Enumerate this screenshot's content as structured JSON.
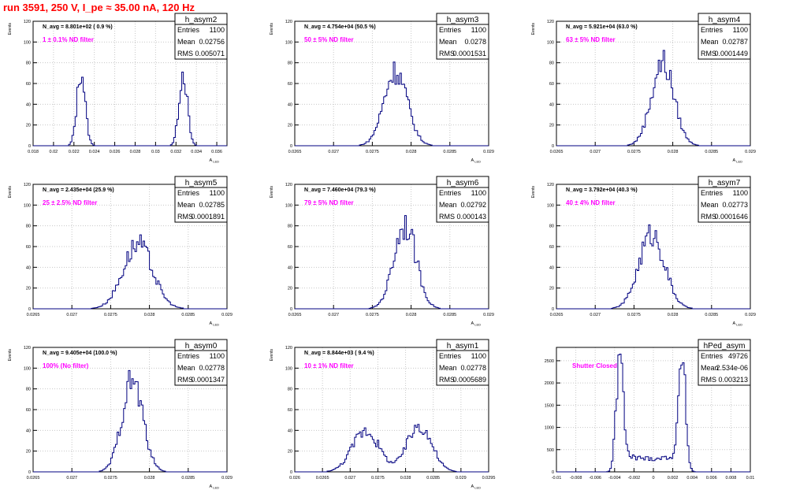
{
  "header": {
    "title": "run 3591,   250 V, I_pe ≈ 35.00 nA, 120 Hz"
  },
  "colors": {
    "title": "#ff0000",
    "filter_label": "#ff00ff",
    "histogram_line": "#000080",
    "grid": "#c8c8c8"
  },
  "chart_data": [
    {
      "type": "histogram",
      "name": "h_asym2",
      "ylabel": "Events",
      "xlabel": "A_LED",
      "xlim": [
        0.018,
        0.037
      ],
      "ylim": [
        0,
        120
      ],
      "xticks": [
        "0.018",
        "0.02",
        "0.022",
        "0.024",
        "0.026",
        "0.028",
        "0.03",
        "0.032",
        "0.034",
        "0.036"
      ],
      "xtick_values": [
        0.018,
        0.02,
        0.022,
        0.024,
        0.026,
        0.028,
        0.03,
        0.032,
        0.034,
        0.036
      ],
      "yticks": [
        0,
        20,
        40,
        60,
        80,
        100,
        120
      ],
      "navg": "N_avg = 8.801e+02 ( 0.9 %)",
      "filter": "1 ± 0.1% ND filter",
      "stats": {
        "entries": "1100",
        "mean": "0.02756",
        "rms": "0.005071"
      },
      "peaks": [
        {
          "center": 0.0227,
          "sigma": 0.0004,
          "height": 72
        },
        {
          "center": 0.0327,
          "sigma": 0.0004,
          "height": 72
        }
      ]
    },
    {
      "type": "histogram",
      "name": "h_asym3",
      "ylabel": "Events",
      "xlabel": "A_LED",
      "xlim": [
        0.0265,
        0.029
      ],
      "ylim": [
        0,
        120
      ],
      "xticks": [
        "0.0265",
        "0.027",
        "0.0275",
        "0.028",
        "0.0285",
        "0.029"
      ],
      "xtick_values": [
        0.0265,
        0.027,
        0.0275,
        0.028,
        0.0285,
        0.029
      ],
      "yticks": [
        0,
        20,
        40,
        60,
        80,
        100,
        120
      ],
      "navg": "N_avg = 4.754e+04 (50.5 %)",
      "filter": "50 ± 5% ND filter",
      "stats": {
        "entries": "1100",
        "mean": "0.0278",
        "rms": "0.0001531"
      },
      "peaks": [
        {
          "center": 0.0278,
          "sigma": 0.00015,
          "height": 72
        }
      ]
    },
    {
      "type": "histogram",
      "name": "h_asym4",
      "ylabel": "Events",
      "xlabel": "A_LED",
      "xlim": [
        0.0265,
        0.029
      ],
      "ylim": [
        0,
        120
      ],
      "xticks": [
        "0.0265",
        "0.027",
        "0.0275",
        "0.028",
        "0.0285",
        "0.029"
      ],
      "xtick_values": [
        0.0265,
        0.027,
        0.0275,
        0.028,
        0.0285,
        0.029
      ],
      "yticks": [
        0,
        20,
        40,
        60,
        80,
        100,
        120
      ],
      "navg": "N_avg = 5.921e+04 (63.0 %)",
      "filter": "63 ± 5% ND filter",
      "stats": {
        "entries": "1100",
        "mean": "0.02787",
        "rms": "0.0001449"
      },
      "peaks": [
        {
          "center": 0.02787,
          "sigma": 0.000145,
          "height": 80
        }
      ]
    },
    {
      "type": "histogram",
      "name": "h_asym5",
      "ylabel": "Events",
      "xlabel": "A_LED",
      "xlim": [
        0.0265,
        0.029
      ],
      "ylim": [
        0,
        120
      ],
      "xticks": [
        "0.0265",
        "0.027",
        "0.0275",
        "0.028",
        "0.0285",
        "0.029"
      ],
      "xtick_values": [
        0.0265,
        0.027,
        0.0275,
        0.028,
        0.0285,
        0.029
      ],
      "yticks": [
        0,
        20,
        40,
        60,
        80,
        100,
        120
      ],
      "navg": "N_avg = 2.435e+04 (25.9 %)",
      "filter": "25 ± 2.5% ND filter",
      "stats": {
        "entries": "1100",
        "mean": "0.02785",
        "rms": "0.0001891"
      },
      "peaks": [
        {
          "center": 0.02785,
          "sigma": 0.00019,
          "height": 62
        }
      ]
    },
    {
      "type": "histogram",
      "name": "h_asym6",
      "ylabel": "Events",
      "xlabel": "A_LED",
      "xlim": [
        0.0265,
        0.029
      ],
      "ylim": [
        0,
        120
      ],
      "xticks": [
        "0.0265",
        "0.027",
        "0.0275",
        "0.028",
        "0.0285",
        "0.029"
      ],
      "xtick_values": [
        0.0265,
        0.027,
        0.0275,
        0.028,
        0.0285,
        0.029
      ],
      "yticks": [
        0,
        20,
        40,
        60,
        80,
        100,
        120
      ],
      "navg": "N_avg = 7.460e+04 (79.3 %)",
      "filter": "79 ± 5% ND filter",
      "stats": {
        "entries": "1100",
        "mean": "0.02792",
        "rms": "0.000143"
      },
      "peaks": [
        {
          "center": 0.02792,
          "sigma": 0.000143,
          "height": 82
        }
      ]
    },
    {
      "type": "histogram",
      "name": "h_asym7",
      "ylabel": "Events",
      "xlabel": "A_LED",
      "xlim": [
        0.0265,
        0.029
      ],
      "ylim": [
        0,
        120
      ],
      "xticks": [
        "0.0265",
        "0.027",
        "0.0275",
        "0.028",
        "0.0285",
        "0.029"
      ],
      "xtick_values": [
        0.0265,
        0.027,
        0.0275,
        0.028,
        0.0285,
        0.029
      ],
      "yticks": [
        0,
        20,
        40,
        60,
        80,
        100,
        120
      ],
      "navg": "N_avg = 3.792e+04 (40.3 %)",
      "filter": "40 ± 4% ND filter",
      "stats": {
        "entries": "1100",
        "mean": "0.02773",
        "rms": "0.0001646"
      },
      "peaks": [
        {
          "center": 0.02773,
          "sigma": 0.000165,
          "height": 72
        }
      ]
    },
    {
      "type": "histogram",
      "name": "h_asym0",
      "ylabel": "Events",
      "xlabel": "A_LED",
      "xlim": [
        0.0265,
        0.029
      ],
      "ylim": [
        0,
        120
      ],
      "xticks": [
        "0.0265",
        "0.027",
        "0.0275",
        "0.028",
        "0.0285",
        "0.029"
      ],
      "xtick_values": [
        0.0265,
        0.027,
        0.0275,
        0.028,
        0.0285,
        0.029
      ],
      "yticks": [
        0,
        20,
        40,
        60,
        80,
        100,
        120
      ],
      "navg": "N_avg = 9.405e+04 (100.0 %)",
      "filter": "100% (No filter)",
      "stats": {
        "entries": "1100",
        "mean": "0.02778",
        "rms": "0.0001347"
      },
      "peaks": [
        {
          "center": 0.02778,
          "sigma": 0.000135,
          "height": 88
        }
      ]
    },
    {
      "type": "histogram",
      "name": "h_asym1",
      "ylabel": "Events",
      "xlabel": "A_LED",
      "xlim": [
        0.026,
        0.0295
      ],
      "ylim": [
        0,
        120
      ],
      "xticks": [
        "0.026",
        "0.0265",
        "0.027",
        "0.0275",
        "0.028",
        "0.0285",
        "0.029",
        "0.0295"
      ],
      "xtick_values": [
        0.026,
        0.0265,
        0.027,
        0.0275,
        0.028,
        0.0285,
        0.029,
        0.0295
      ],
      "yticks": [
        0,
        20,
        40,
        60,
        80,
        100,
        120
      ],
      "navg": "N_avg = 8.844e+03 ( 9.4 %)",
      "filter": "10 ± 1% ND filter",
      "stats": {
        "entries": "1100",
        "mean": "0.02778",
        "rms": "0.0005689"
      },
      "peaks": [
        {
          "center": 0.02728,
          "sigma": 0.00024,
          "height": 40
        },
        {
          "center": 0.02825,
          "sigma": 0.00022,
          "height": 45
        }
      ]
    },
    {
      "type": "histogram",
      "name": "hPed_asym",
      "ylabel": "",
      "xlabel": "",
      "xlim": [
        -0.01,
        0.01
      ],
      "ylim": [
        0,
        2800
      ],
      "xticks": [
        "-0.01",
        "-0.008",
        "-0.006",
        "-0.004",
        "-0.002",
        "0",
        "0.002",
        "0.004",
        "0.006",
        "0.008",
        "0.01"
      ],
      "xtick_values": [
        -0.01,
        -0.008,
        -0.006,
        -0.004,
        -0.002,
        0,
        0.002,
        0.004,
        0.006,
        0.008,
        0.01
      ],
      "yticks": [
        0,
        500,
        1000,
        1500,
        2000,
        2500
      ],
      "navg": "",
      "filter": "Shutter Closed",
      "stats": {
        "entries": "49726",
        "mean": "2.534e-06",
        "rms": "0.003213"
      },
      "peaks": [
        {
          "center": -0.0035,
          "sigma": 0.00035,
          "height": 2500
        },
        {
          "center": 0.003,
          "sigma": 0.00035,
          "height": 2400
        }
      ],
      "baseline": 300
    }
  ]
}
